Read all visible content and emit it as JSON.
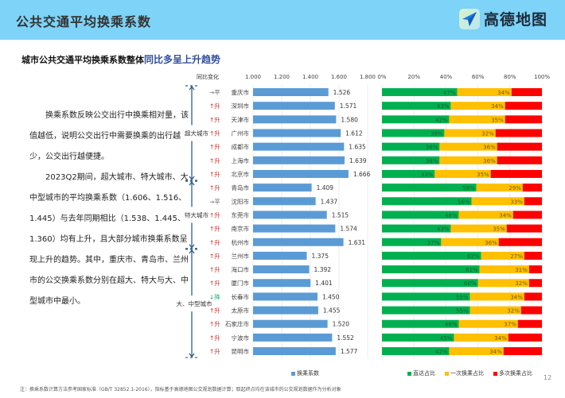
{
  "header": {
    "title": "公共交通平均换乘系数",
    "logo_text": "高德地图",
    "logo_icon": "navigation-arrow-icon"
  },
  "subtitle": {
    "prefix": "城市公共交通平均换乘系数整体",
    "highlight": "同比多呈上升趋势"
  },
  "description": {
    "para1": "换乘系数反映公交出行中换乘相对量，该值越低，说明公交出行中需要换乘的出行越少，公交出行越便捷。",
    "para2": "2023Q2期间，超大城市、特大城市、大中型城市的平均换乘系数（1.606、1.516、1.445）与去年同期相比（1.538、1.445、1.360）均有上升，且大部分城市换乘系数呈现上升的趋势。其中，重庆市、青岛市、兰州市的公交换乘系数分别在超大、特大与大、中型城市中最小。"
  },
  "colors": {
    "header_bg": "#7dd3f8",
    "bar_blue": "#5b9bd5",
    "direct_green": "#00b050",
    "one_transfer_yellow": "#ffc000",
    "multi_transfer_red": "#ff0000",
    "up_red": "#e02020",
    "down_green": "#20b070",
    "group_arrow": "#2e5f8a",
    "highlight_blue": "#2f4f9f"
  },
  "chart_data": [
    {
      "type": "bar",
      "orientation": "horizontal",
      "title": "换乘系数",
      "change_header": "同比变化",
      "xlim": [
        1.0,
        1.8
      ],
      "xticks": [
        "1.000",
        "1.200",
        "1.400",
        "1.600",
        "1.800"
      ],
      "xtick_values": [
        1.0,
        1.2,
        1.4,
        1.6,
        1.8
      ],
      "legend": "换乘系数",
      "groups": [
        {
          "name": "超大城市",
          "start": 0,
          "end": 6
        },
        {
          "name": "特大城市",
          "start": 7,
          "end": 11
        },
        {
          "name": "大、中型城市",
          "start": 12,
          "end": 19
        }
      ],
      "categories": [
        "重庆市",
        "深圳市",
        "天津市",
        "广州市",
        "成都市",
        "上海市",
        "北京市",
        "青岛市",
        "沈阳市",
        "东莞市",
        "南京市",
        "杭州市",
        "兰州市",
        "海口市",
        "厦门市",
        "长春市",
        "太原市",
        "石家庄市",
        "宁波市",
        "昆明市"
      ],
      "values": [
        1.526,
        1.571,
        1.58,
        1.612,
        1.635,
        1.639,
        1.666,
        1.409,
        1.437,
        1.515,
        1.574,
        1.631,
        1.375,
        1.392,
        1.401,
        1.45,
        1.455,
        1.52,
        1.552,
        1.577
      ],
      "value_labels": [
        "1.526",
        "1.571",
        "1.580",
        "1.612",
        "1.635",
        "1.639",
        "1.666",
        "1.409",
        "1.437",
        "1.515",
        "1.574",
        "1.631",
        "1.375",
        "1.392",
        "1.401",
        "1.450",
        "1.455",
        "1.520",
        "1.552",
        "1.577"
      ],
      "changes": [
        {
          "arrow": "→",
          "label": "平",
          "dir": "flat"
        },
        {
          "arrow": "↑",
          "label": "升",
          "dir": "up"
        },
        {
          "arrow": "↑",
          "label": "升",
          "dir": "up"
        },
        {
          "arrow": "↑",
          "label": "升",
          "dir": "up"
        },
        {
          "arrow": "↑",
          "label": "升",
          "dir": "up"
        },
        {
          "arrow": "↑",
          "label": "升",
          "dir": "up"
        },
        {
          "arrow": "↑",
          "label": "升",
          "dir": "up"
        },
        {
          "arrow": "↑",
          "label": "升",
          "dir": "up"
        },
        {
          "arrow": "→",
          "label": "平",
          "dir": "flat"
        },
        {
          "arrow": "↑",
          "label": "升",
          "dir": "up"
        },
        {
          "arrow": "↑",
          "label": "升",
          "dir": "up"
        },
        {
          "arrow": "↑",
          "label": "升",
          "dir": "up"
        },
        {
          "arrow": "↑",
          "label": "升",
          "dir": "up"
        },
        {
          "arrow": "↑",
          "label": "升",
          "dir": "up"
        },
        {
          "arrow": "↑",
          "label": "升",
          "dir": "up"
        },
        {
          "arrow": "↓",
          "label": "降",
          "dir": "down"
        },
        {
          "arrow": "↑",
          "label": "升",
          "dir": "up"
        },
        {
          "arrow": "↑",
          "label": "升",
          "dir": "up"
        },
        {
          "arrow": "↑",
          "label": "升",
          "dir": "up"
        },
        {
          "arrow": "↑",
          "label": "升",
          "dir": "up"
        }
      ]
    },
    {
      "type": "bar",
      "orientation": "horizontal",
      "stacked": true,
      "percent": true,
      "xlim": [
        0,
        100
      ],
      "xticks": [
        "0%",
        "20%",
        "40%",
        "60%",
        "80%",
        "100%"
      ],
      "xtick_values": [
        0,
        20,
        40,
        60,
        80,
        100
      ],
      "categories": [
        "重庆市",
        "深圳市",
        "天津市",
        "广州市",
        "成都市",
        "上海市",
        "北京市",
        "青岛市",
        "沈阳市",
        "东莞市",
        "南京市",
        "杭州市",
        "兰州市",
        "海口市",
        "厦门市",
        "长春市",
        "太原市",
        "石家庄市",
        "宁波市",
        "昆明市"
      ],
      "series": [
        {
          "name": "直达占比",
          "values": [
            47,
            43,
            42,
            39,
            36,
            36,
            33,
            59,
            56,
            48,
            43,
            37,
            62,
            61,
            60,
            55,
            55,
            48,
            45,
            42
          ]
        },
        {
          "name": "一次换乘占比",
          "values": [
            34,
            34,
            35,
            32,
            36,
            36,
            35,
            29,
            33,
            34,
            35,
            36,
            27,
            31,
            32,
            34,
            32,
            37,
            34,
            34
          ]
        },
        {
          "name": "多次换乘占比",
          "values": [
            19,
            23,
            23,
            29,
            28,
            28,
            32,
            12,
            11,
            18,
            22,
            27,
            11,
            8,
            8,
            11,
            13,
            15,
            21,
            24
          ]
        }
      ],
      "labeled_series": [
        "直达占比",
        "一次换乘占比"
      ]
    }
  ],
  "footer": {
    "note": "注：换乘系数计算方法参考国家标准（GB/T 32852.1-2016），指标基于高德地图公交规划数据计算；取起终点均在该城市的公交规划数据作为分析对象",
    "page": "12"
  }
}
